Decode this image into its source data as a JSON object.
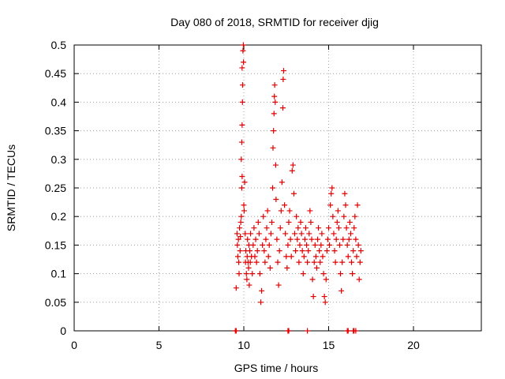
{
  "chart_data": {
    "type": "scatter",
    "title": "Day 080 of 2018, SRMTID for receiver djig",
    "xlabel": "GPS time / hours",
    "ylabel": "SRMTID / TECUs",
    "xlim": [
      0,
      24
    ],
    "ylim": [
      0,
      0.5
    ],
    "xticks": [
      "0",
      "5",
      "10",
      "15",
      "20"
    ],
    "yticks": [
      "0",
      "0.05",
      "0.1",
      "0.15",
      "0.2",
      "0.25",
      "0.3",
      "0.35",
      "0.4",
      "0.45",
      "0.5"
    ],
    "grid": true,
    "marker": "+",
    "color": "#e00000",
    "series": [
      {
        "name": "SRMTID",
        "points": [
          [
            9.55,
            0.075
          ],
          [
            9.6,
            0.17
          ],
          [
            9.62,
            0.15
          ],
          [
            9.65,
            0.13
          ],
          [
            9.68,
            0.16
          ],
          [
            9.7,
            0.12
          ],
          [
            9.72,
            0.1
          ],
          [
            9.75,
            0.18
          ],
          [
            9.78,
            0.14
          ],
          [
            9.8,
            0.165
          ],
          [
            9.82,
            0.19
          ],
          [
            9.85,
            0.2
          ],
          [
            9.88,
            0.25
          ],
          [
            9.9,
            0.27
          ],
          [
            9.85,
            0.3
          ],
          [
            9.88,
            0.33
          ],
          [
            9.9,
            0.36
          ],
          [
            9.92,
            0.4
          ],
          [
            9.93,
            0.43
          ],
          [
            9.9,
            0.46
          ],
          [
            9.95,
            0.49
          ],
          [
            9.97,
            0.5
          ],
          [
            9.98,
            0.47
          ],
          [
            10.0,
            0.22
          ],
          [
            10.02,
            0.21
          ],
          [
            10.05,
            0.26
          ],
          [
            10.08,
            0.17
          ],
          [
            10.1,
            0.12
          ],
          [
            10.12,
            0.14
          ],
          [
            10.15,
            0.1
          ],
          [
            10.18,
            0.09
          ],
          [
            10.2,
            0.13
          ],
          [
            10.22,
            0.16
          ],
          [
            10.25,
            0.12
          ],
          [
            10.28,
            0.11
          ],
          [
            10.3,
            0.15
          ],
          [
            10.32,
            0.08
          ],
          [
            10.35,
            0.14
          ],
          [
            10.38,
            0.12
          ],
          [
            10.4,
            0.17
          ],
          [
            10.45,
            0.13
          ],
          [
            10.5,
            0.1
          ],
          [
            10.55,
            0.15
          ],
          [
            10.6,
            0.18
          ],
          [
            10.65,
            0.13
          ],
          [
            10.7,
            0.16
          ],
          [
            10.75,
            0.12
          ],
          [
            10.8,
            0.14
          ],
          [
            10.85,
            0.19
          ],
          [
            10.9,
            0.17
          ],
          [
            10.95,
            0.1
          ],
          [
            11.0,
            0.05
          ],
          [
            11.05,
            0.07
          ],
          [
            11.1,
            0.15
          ],
          [
            11.15,
            0.2
          ],
          [
            11.2,
            0.14
          ],
          [
            11.25,
            0.12
          ],
          [
            11.3,
            0.16
          ],
          [
            11.35,
            0.18
          ],
          [
            11.4,
            0.21
          ],
          [
            11.45,
            0.13
          ],
          [
            11.5,
            0.15
          ],
          [
            11.55,
            0.11
          ],
          [
            11.6,
            0.17
          ],
          [
            11.65,
            0.19
          ],
          [
            11.7,
            0.25
          ],
          [
            11.72,
            0.32
          ],
          [
            11.75,
            0.35
          ],
          [
            11.78,
            0.38
          ],
          [
            11.8,
            0.41
          ],
          [
            11.82,
            0.43
          ],
          [
            11.85,
            0.4
          ],
          [
            11.88,
            0.29
          ],
          [
            11.9,
            0.23
          ],
          [
            11.95,
            0.16
          ],
          [
            12.0,
            0.12
          ],
          [
            12.05,
            0.08
          ],
          [
            12.1,
            0.14
          ],
          [
            12.15,
            0.18
          ],
          [
            12.2,
            0.21
          ],
          [
            12.25,
            0.26
          ],
          [
            12.3,
            0.39
          ],
          [
            12.32,
            0.44
          ],
          [
            12.35,
            0.455
          ],
          [
            12.4,
            0.22
          ],
          [
            12.45,
            0.17
          ],
          [
            12.5,
            0.13
          ],
          [
            12.55,
            0.11
          ],
          [
            12.6,
            0.15
          ],
          [
            12.65,
            0.19
          ],
          [
            12.7,
            0.21
          ],
          [
            12.75,
            0.16
          ],
          [
            12.8,
            0.13
          ],
          [
            12.85,
            0.28
          ],
          [
            12.9,
            0.29
          ],
          [
            12.95,
            0.24
          ],
          [
            13.0,
            0.17
          ],
          [
            13.05,
            0.14
          ],
          [
            13.1,
            0.2
          ],
          [
            13.15,
            0.16
          ],
          [
            13.2,
            0.18
          ],
          [
            13.25,
            0.12
          ],
          [
            13.3,
            0.15
          ],
          [
            13.35,
            0.19
          ],
          [
            13.4,
            0.17
          ],
          [
            13.45,
            0.14
          ],
          [
            13.5,
            0.1
          ],
          [
            13.55,
            0.13
          ],
          [
            13.6,
            0.16
          ],
          [
            13.65,
            0.18
          ],
          [
            13.7,
            0.15
          ],
          [
            13.75,
            0.12
          ],
          [
            13.8,
            0.14
          ],
          [
            13.85,
            0.17
          ],
          [
            13.9,
            0.21
          ],
          [
            13.95,
            0.19
          ],
          [
            14.0,
            0.16
          ],
          [
            14.05,
            0.09
          ],
          [
            14.1,
            0.06
          ],
          [
            14.15,
            0.12
          ],
          [
            14.2,
            0.15
          ],
          [
            14.25,
            0.13
          ],
          [
            14.3,
            0.11
          ],
          [
            14.35,
            0.16
          ],
          [
            14.4,
            0.18
          ],
          [
            14.45,
            0.14
          ],
          [
            14.5,
            0.12
          ],
          [
            14.55,
            0.15
          ],
          [
            14.6,
            0.17
          ],
          [
            14.65,
            0.13
          ],
          [
            14.7,
            0.1
          ],
          [
            14.75,
            0.06
          ],
          [
            14.8,
            0.05
          ],
          [
            14.85,
            0.09
          ],
          [
            14.9,
            0.14
          ],
          [
            14.95,
            0.16
          ],
          [
            15.0,
            0.18
          ],
          [
            15.05,
            0.15
          ],
          [
            15.1,
            0.22
          ],
          [
            15.15,
            0.24
          ],
          [
            15.2,
            0.25
          ],
          [
            15.25,
            0.2
          ],
          [
            15.3,
            0.17
          ],
          [
            15.35,
            0.14
          ],
          [
            15.4,
            0.12
          ],
          [
            15.45,
            0.16
          ],
          [
            15.5,
            0.19
          ],
          [
            15.55,
            0.21
          ],
          [
            15.6,
            0.18
          ],
          [
            15.65,
            0.15
          ],
          [
            15.7,
            0.1
          ],
          [
            15.75,
            0.07
          ],
          [
            15.8,
            0.12
          ],
          [
            15.85,
            0.16
          ],
          [
            15.9,
            0.2
          ],
          [
            15.95,
            0.24
          ],
          [
            16.0,
            0.22
          ],
          [
            16.05,
            0.18
          ],
          [
            16.1,
            0.15
          ],
          [
            16.15,
            0.13
          ],
          [
            16.2,
            0.16
          ],
          [
            16.25,
            0.19
          ],
          [
            16.3,
            0.17
          ],
          [
            16.35,
            0.12
          ],
          [
            16.4,
            0.1
          ],
          [
            16.45,
            0.14
          ],
          [
            16.5,
            0.18
          ],
          [
            16.55,
            0.2
          ],
          [
            16.6,
            0.16
          ],
          [
            16.65,
            0.13
          ],
          [
            16.7,
            0.22
          ],
          [
            16.75,
            0.15
          ],
          [
            16.8,
            0.09
          ],
          [
            16.85,
            0.12
          ],
          [
            16.9,
            0.14
          ],
          [
            9.5,
            0.0
          ],
          [
            9.55,
            0.0
          ],
          [
            12.6,
            0.0
          ],
          [
            12.65,
            0.0
          ],
          [
            13.75,
            0.0
          ],
          [
            16.1,
            0.0
          ],
          [
            16.15,
            0.0
          ],
          [
            16.45,
            0.0
          ],
          [
            16.5,
            0.0
          ],
          [
            16.6,
            0.0
          ]
        ]
      }
    ]
  }
}
